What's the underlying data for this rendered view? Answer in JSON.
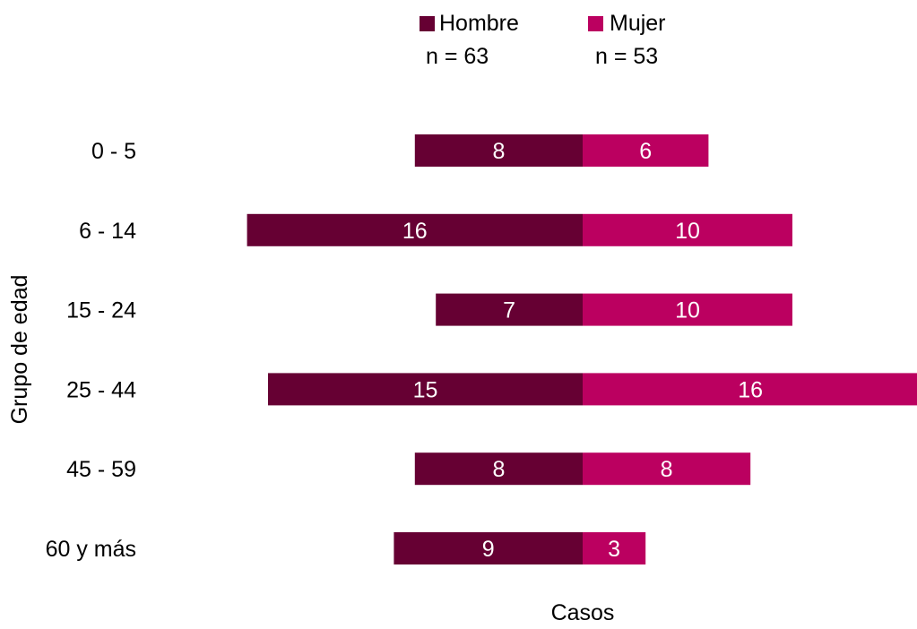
{
  "chart_data": {
    "type": "bar",
    "orientation": "horizontal-diverging",
    "title": "",
    "xlabel": "Casos",
    "ylabel": "Grupo de edad",
    "categories": [
      "0 - 5",
      "6 - 14",
      "15 - 24",
      "25 - 44",
      "45 - 59",
      "60 y más"
    ],
    "series": [
      {
        "name": "Hombre",
        "n_label": "n = 63",
        "color": "#660033",
        "direction": "left",
        "values": [
          8,
          16,
          7,
          15,
          8,
          9
        ]
      },
      {
        "name": "Mujer",
        "n_label": "n = 53",
        "color": "#bb0060",
        "direction": "right",
        "values": [
          6,
          10,
          10,
          16,
          8,
          3
        ]
      }
    ],
    "xlim": [
      -16,
      16
    ],
    "legend": "top",
    "grid": false,
    "label_color": "#ffffff"
  }
}
